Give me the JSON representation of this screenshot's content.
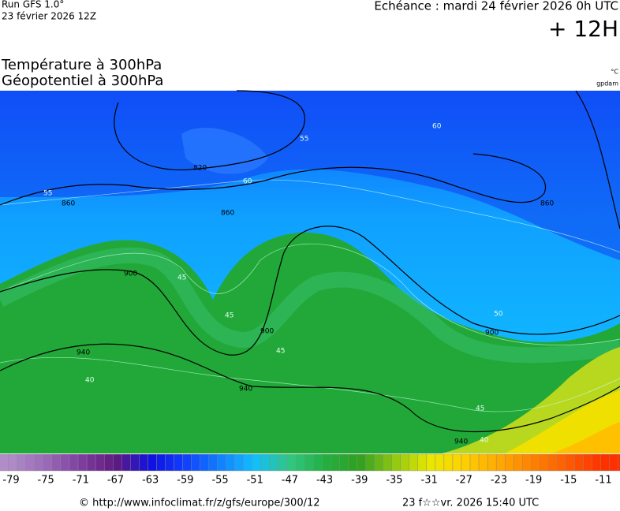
{
  "header": {
    "run": "Run GFS 1.0°",
    "run_date": "23 février 2026 12Z",
    "valid": "Echéance : mardi 24 février 2026 0h UTC",
    "lead": "+ 12H"
  },
  "titles": {
    "temperature": "Température à 300hPa",
    "geopotential": "Géopotentiel à 300hPa",
    "unit_temp": "°C",
    "unit_geo": "gpdam"
  },
  "map": {
    "geopotential_labels": [
      "820",
      "860",
      "860",
      "860",
      "900",
      "900",
      "900",
      "940",
      "940",
      "940"
    ],
    "temperature_labels": [
      "55",
      "60",
      "60",
      "55",
      "45",
      "45",
      "45",
      "40",
      "45",
      "40",
      "50"
    ]
  },
  "legend": {
    "ticks": [
      -79,
      -75,
      -71,
      -67,
      -63,
      -59,
      -55,
      -51,
      -47,
      -43,
      -39,
      -35,
      -31,
      -27,
      -23,
      -19,
      -15,
      -11
    ],
    "colors": [
      "#b08cc8",
      "#9a6ab8",
      "#7e3ea0",
      "#601a80",
      "#1010e0",
      "#1040ff",
      "#1080ff",
      "#10c0ff",
      "#30c880",
      "#20b040",
      "#30a020",
      "#90c810",
      "#e8e800",
      "#ffd000",
      "#ffa800",
      "#ff8000",
      "#ff5a00",
      "#ff3000"
    ]
  },
  "footer": {
    "source": "© http://www.infoclimat.fr/z/gfs/europe/300/12",
    "timestamp": "23 f☆☆vr. 2026 15:40 UTC"
  }
}
